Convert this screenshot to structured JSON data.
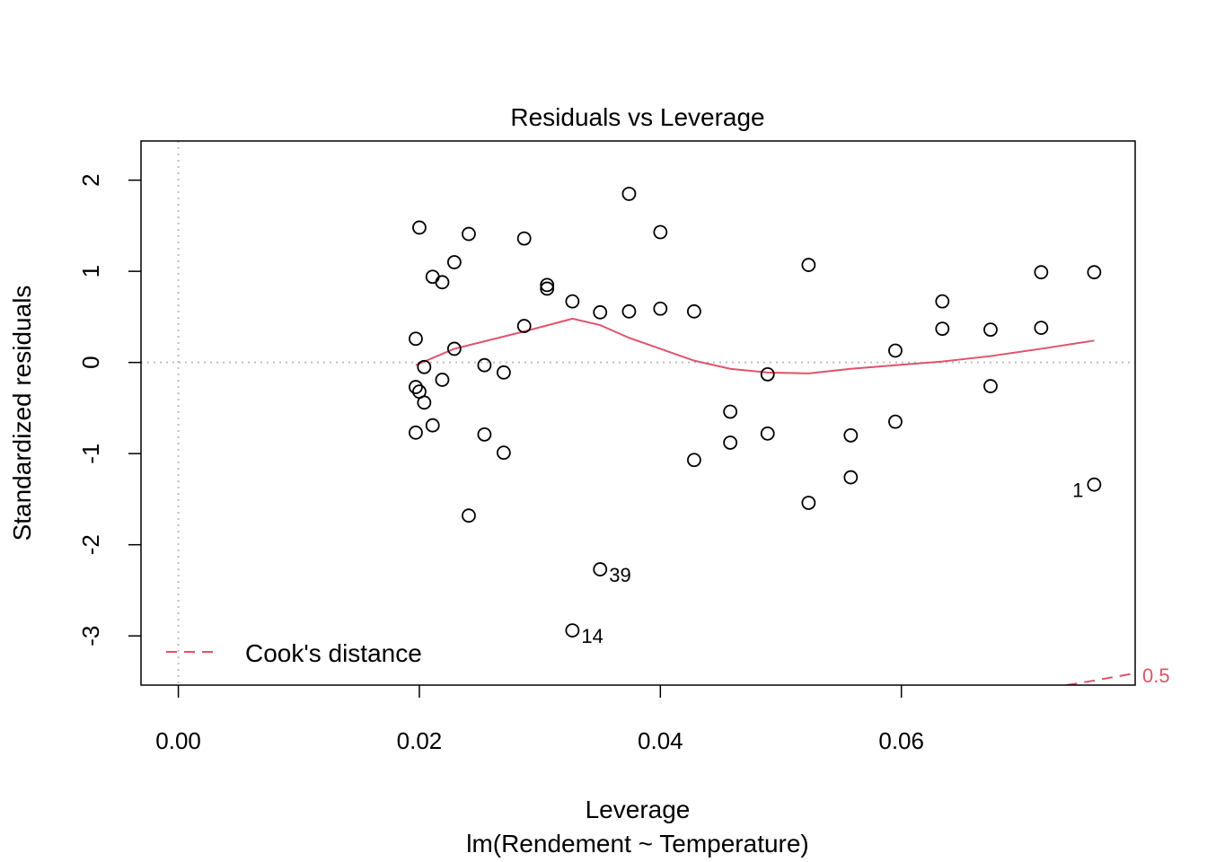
{
  "colors": {
    "points": "#000000",
    "smoother": "#DF536B",
    "cook": "#DF536B",
    "refline": "#BEBEBE",
    "frame": "#000000"
  },
  "chart_data": {
    "type": "scatter",
    "title": "Residuals vs Leverage",
    "xlabel": "Leverage",
    "sublabel": "lm(Rendement ~ Temperature)",
    "ylabel": "Standardized residuals",
    "xlim": [
      -0.0031,
      0.0794
    ],
    "ylim": [
      -3.54,
      2.43
    ],
    "xticks": [
      {
        "value": 0.0,
        "label": "0.00"
      },
      {
        "value": 0.02,
        "label": "0.02"
      },
      {
        "value": 0.04,
        "label": "0.04"
      },
      {
        "value": 0.06,
        "label": "0.06"
      }
    ],
    "yticks": [
      {
        "value": -3,
        "label": "-3"
      },
      {
        "value": -2,
        "label": "-2"
      },
      {
        "value": -1,
        "label": "-1"
      },
      {
        "value": 0,
        "label": "0"
      },
      {
        "value": 1,
        "label": "1"
      },
      {
        "value": 2,
        "label": "2"
      }
    ],
    "grid": false,
    "reference_lines": {
      "x": 0,
      "y": 0
    },
    "points": [
      {
        "x": 0.02,
        "y": 1.48
      },
      {
        "x": 0.0197,
        "y": 0.26
      },
      {
        "x": 0.0197,
        "y": -0.27
      },
      {
        "x": 0.0197,
        "y": -0.77
      },
      {
        "x": 0.02,
        "y": -0.32
      },
      {
        "x": 0.0204,
        "y": -0.05
      },
      {
        "x": 0.0204,
        "y": -0.44
      },
      {
        "x": 0.0211,
        "y": 0.94
      },
      {
        "x": 0.0211,
        "y": -0.69
      },
      {
        "x": 0.0219,
        "y": 0.88
      },
      {
        "x": 0.0219,
        "y": -0.19
      },
      {
        "x": 0.0229,
        "y": 1.1
      },
      {
        "x": 0.0229,
        "y": 0.15
      },
      {
        "x": 0.0241,
        "y": 1.41
      },
      {
        "x": 0.0241,
        "y": -1.68
      },
      {
        "x": 0.0254,
        "y": -0.03
      },
      {
        "x": 0.0254,
        "y": -0.79
      },
      {
        "x": 0.027,
        "y": -0.11
      },
      {
        "x": 0.027,
        "y": -0.99
      },
      {
        "x": 0.0287,
        "y": 1.36
      },
      {
        "x": 0.0287,
        "y": 0.4
      },
      {
        "x": 0.0306,
        "y": 0.85
      },
      {
        "x": 0.0306,
        "y": 0.81
      },
      {
        "x": 0.0327,
        "y": 0.67
      },
      {
        "x": 0.0327,
        "y": -2.94,
        "label": "14"
      },
      {
        "x": 0.035,
        "y": 0.55
      },
      {
        "x": 0.035,
        "y": -2.27,
        "label": "39"
      },
      {
        "x": 0.0374,
        "y": 1.85
      },
      {
        "x": 0.0374,
        "y": 0.56
      },
      {
        "x": 0.04,
        "y": 1.43
      },
      {
        "x": 0.04,
        "y": 0.59
      },
      {
        "x": 0.0428,
        "y": 0.56
      },
      {
        "x": 0.0428,
        "y": -1.07
      },
      {
        "x": 0.0458,
        "y": -0.54
      },
      {
        "x": 0.0458,
        "y": -0.88
      },
      {
        "x": 0.0489,
        "y": -0.13
      },
      {
        "x": 0.0489,
        "y": -0.78
      },
      {
        "x": 0.0523,
        "y": 1.07
      },
      {
        "x": 0.0523,
        "y": -1.54
      },
      {
        "x": 0.0558,
        "y": -0.8
      },
      {
        "x": 0.0558,
        "y": -1.26
      },
      {
        "x": 0.0595,
        "y": 0.13
      },
      {
        "x": 0.0595,
        "y": -0.65
      },
      {
        "x": 0.0634,
        "y": 0.67
      },
      {
        "x": 0.0634,
        "y": 0.37
      },
      {
        "x": 0.0674,
        "y": 0.36
      },
      {
        "x": 0.0674,
        "y": -0.26
      },
      {
        "x": 0.0716,
        "y": 0.99
      },
      {
        "x": 0.0716,
        "y": 0.38
      },
      {
        "x": 0.076,
        "y": 0.99
      },
      {
        "x": 0.076,
        "y": -1.34,
        "label": "1"
      }
    ],
    "smoother": {
      "x": [
        0.0197,
        0.0229,
        0.0287,
        0.0327,
        0.035,
        0.0374,
        0.04,
        0.0428,
        0.0458,
        0.0489,
        0.0523,
        0.0558,
        0.0595,
        0.0634,
        0.0674,
        0.0716,
        0.076
      ],
      "y": [
        -0.03,
        0.15,
        0.34,
        0.48,
        0.41,
        0.27,
        0.15,
        0.02,
        -0.07,
        -0.11,
        -0.12,
        -0.07,
        -0.03,
        0.01,
        0.07,
        0.15,
        0.24
      ]
    },
    "cooks_distance": {
      "level_label": "0.5",
      "x": [
        0.0737,
        0.076,
        0.0794
      ],
      "y": [
        -3.54,
        -3.49,
        -3.41
      ]
    },
    "legend": {
      "entries": [
        "Cook's distance"
      ],
      "placement": "bottom-left"
    }
  }
}
